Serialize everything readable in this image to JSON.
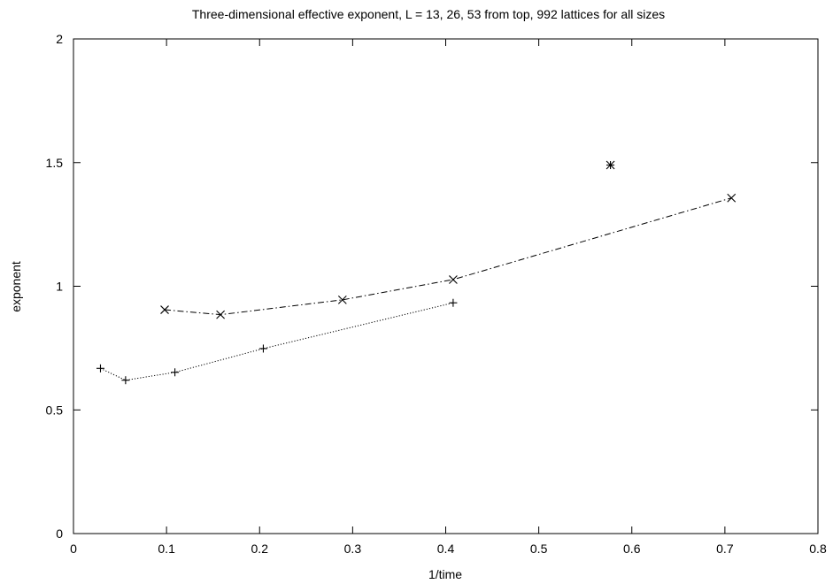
{
  "chart_data": {
    "type": "line",
    "title": "Three-dimensional effective exponent, L = 13, 26, 53 from top, 992 lattices for all sizes",
    "xlabel": "1/time",
    "ylabel": "exponent",
    "xlim": [
      0,
      0.8
    ],
    "ylim": [
      0,
      2
    ],
    "xticks": [
      0,
      0.1,
      0.2,
      0.3,
      0.4,
      0.5,
      0.6,
      0.7,
      0.8
    ],
    "xtick_labels": [
      "0",
      "0.1",
      "0.2",
      "0.3",
      "0.4",
      "0.5",
      "0.6",
      "0.7",
      "0.8"
    ],
    "yticks": [
      0,
      0.5,
      1,
      1.5,
      2
    ],
    "ytick_labels": [
      "0",
      "0.5",
      "1",
      "1.5",
      "2"
    ],
    "grid": false,
    "legend": "none",
    "series": [
      {
        "marker": "asterisk",
        "line": "none",
        "x": [
          0.577
        ],
        "y": [
          1.49
        ]
      },
      {
        "marker": "x",
        "line": "dash-dot",
        "x": [
          0.098,
          0.158,
          0.289,
          0.408,
          0.707
        ],
        "y": [
          0.905,
          0.885,
          0.945,
          1.027,
          1.357
        ]
      },
      {
        "marker": "plus",
        "line": "dotted",
        "x": [
          0.029,
          0.056,
          0.109,
          0.204,
          0.408
        ],
        "y": [
          0.668,
          0.62,
          0.652,
          0.748,
          0.933
        ]
      }
    ]
  }
}
